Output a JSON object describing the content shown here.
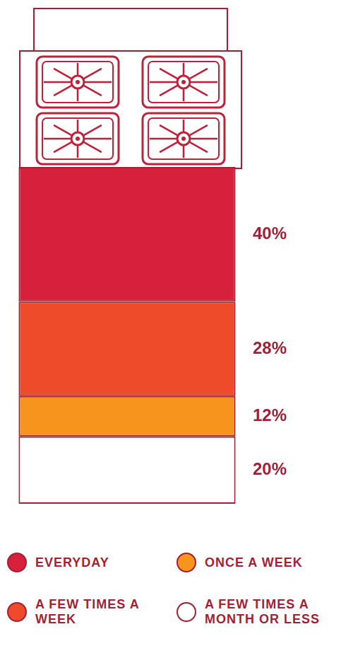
{
  "chart_data": {
    "type": "bar",
    "stacked": true,
    "data_labels": true,
    "tick_labels": false,
    "legend": "bottom",
    "categories": [
      null
    ],
    "ylim": [
      0,
      100
    ],
    "series": [
      {
        "name": "EVERYDAY",
        "color": "#d7203c",
        "values": [
          40
        ],
        "value_labels": [
          "40%"
        ]
      },
      {
        "name": "A FEW TIMES A WEEK",
        "color": "#ee4b2b",
        "values": [
          28
        ],
        "value_labels": [
          "28%"
        ]
      },
      {
        "name": "ONCE A WEEK",
        "color": "#f7941d",
        "values": [
          12
        ],
        "value_labels": [
          "12%"
        ]
      },
      {
        "name": "A FEW TIMES A MONTH OR LESS",
        "color": "#ffffff",
        "values": [
          20
        ],
        "value_labels": [
          "20%"
        ]
      }
    ]
  }
}
